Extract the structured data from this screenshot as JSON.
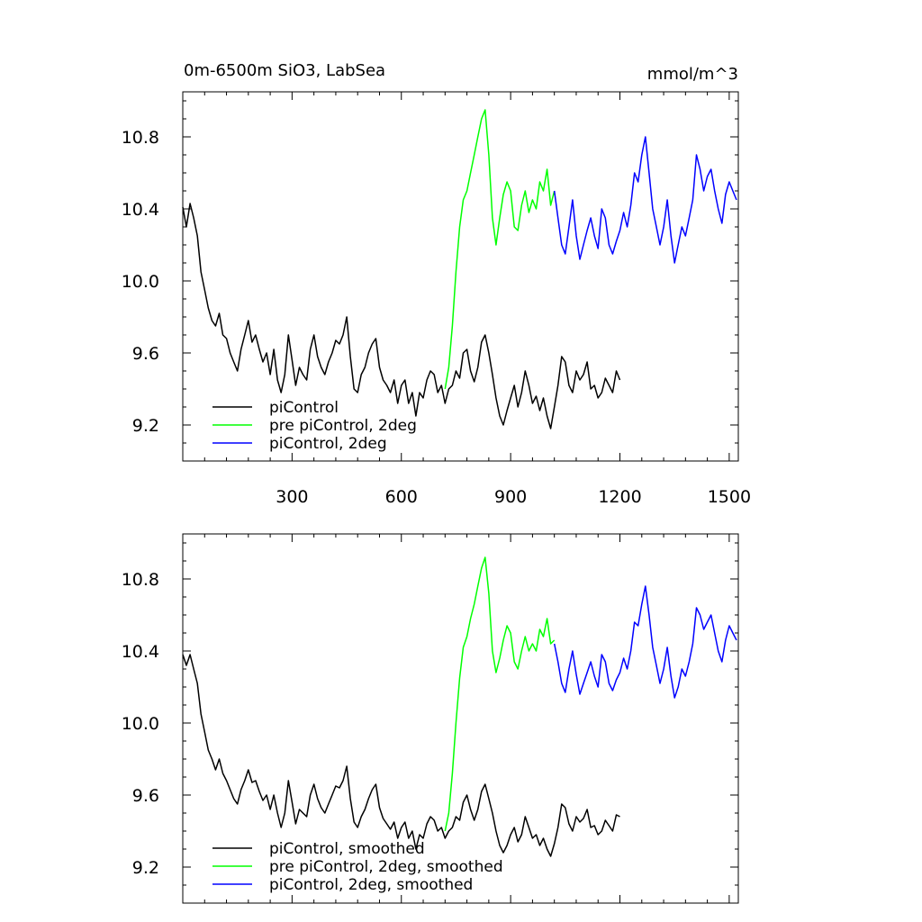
{
  "chart_data": [
    {
      "type": "line",
      "title": "0m-6500m SiO3, LabSea",
      "units": "mmol/m^3",
      "xlim": [
        0,
        1525
      ],
      "ylim": [
        9.0,
        11.05
      ],
      "x_ticks": [
        300,
        600,
        900,
        1200,
        1500
      ],
      "x_tick_labels": [
        "300",
        "600",
        "900",
        "1200",
        "1500"
      ],
      "y_ticks": [
        9.2,
        9.6,
        10.0,
        10.4,
        10.8
      ],
      "y_tick_labels": [
        "9.2",
        "9.6",
        "10.0",
        "10.4",
        "10.8"
      ],
      "legend_position": "bottom-left",
      "series": [
        {
          "name": "piControl",
          "color": "#000000",
          "x": [
            0,
            10,
            20,
            30,
            40,
            50,
            60,
            70,
            80,
            90,
            100,
            110,
            120,
            130,
            140,
            150,
            160,
            170,
            180,
            190,
            200,
            210,
            220,
            230,
            240,
            250,
            260,
            270,
            280,
            290,
            300,
            310,
            320,
            330,
            340,
            350,
            360,
            370,
            380,
            390,
            400,
            410,
            420,
            430,
            440,
            450,
            460,
            470,
            480,
            490,
            500,
            510,
            520,
            530,
            540,
            550,
            560,
            570,
            580,
            590,
            600,
            610,
            620,
            630,
            640,
            650,
            660,
            670,
            680,
            690,
            700,
            710,
            720,
            730,
            740,
            750,
            760,
            770,
            780,
            790,
            800,
            810,
            820,
            830,
            840,
            850,
            860,
            870,
            880,
            890,
            900,
            910,
            920,
            930,
            940,
            950,
            960,
            970,
            980,
            990,
            1000,
            1010,
            1020,
            1030,
            1040,
            1050,
            1060,
            1070,
            1080,
            1090,
            1100,
            1110,
            1120,
            1130,
            1140,
            1150,
            1160,
            1170,
            1180,
            1190,
            1200
          ],
          "y": [
            10.41,
            10.3,
            10.43,
            10.35,
            10.25,
            10.05,
            9.95,
            9.85,
            9.78,
            9.75,
            9.82,
            9.7,
            9.68,
            9.6,
            9.55,
            9.5,
            9.62,
            9.7,
            9.78,
            9.66,
            9.7,
            9.62,
            9.55,
            9.6,
            9.48,
            9.62,
            9.45,
            9.38,
            9.48,
            9.7,
            9.56,
            9.42,
            9.52,
            9.48,
            9.45,
            9.62,
            9.7,
            9.58,
            9.52,
            9.48,
            9.55,
            9.6,
            9.67,
            9.65,
            9.7,
            9.8,
            9.58,
            9.4,
            9.38,
            9.48,
            9.52,
            9.6,
            9.65,
            9.68,
            9.52,
            9.45,
            9.42,
            9.38,
            9.45,
            9.32,
            9.42,
            9.45,
            9.32,
            9.38,
            9.25,
            9.38,
            9.35,
            9.45,
            9.5,
            9.48,
            9.38,
            9.42,
            9.32,
            9.4,
            9.42,
            9.5,
            9.46,
            9.6,
            9.62,
            9.5,
            9.44,
            9.52,
            9.66,
            9.7,
            9.6,
            9.48,
            9.35,
            9.25,
            9.2,
            9.28,
            9.35,
            9.42,
            9.3,
            9.38,
            9.5,
            9.42,
            9.32,
            9.36,
            9.28,
            9.35,
            9.25,
            9.18,
            9.3,
            9.42,
            9.58,
            9.55,
            9.42,
            9.38,
            9.5,
            9.45,
            9.48,
            9.55,
            9.4,
            9.42,
            9.35,
            9.38,
            9.46,
            9.42,
            9.38,
            9.5,
            9.45
          ]
        },
        {
          "name": "pre piControl, 2deg",
          "color": "#00ff00",
          "x": [
            720,
            730,
            740,
            750,
            760,
            770,
            780,
            790,
            800,
            810,
            820,
            830,
            840,
            850,
            860,
            870,
            880,
            890,
            900,
            910,
            920,
            930,
            940,
            950,
            960,
            970,
            980,
            990,
            1000,
            1010,
            1020
          ],
          "y": [
            9.4,
            9.52,
            9.75,
            10.05,
            10.3,
            10.45,
            10.5,
            10.6,
            10.7,
            10.8,
            10.9,
            10.95,
            10.7,
            10.35,
            10.2,
            10.35,
            10.48,
            10.55,
            10.5,
            10.3,
            10.28,
            10.42,
            10.5,
            10.38,
            10.45,
            10.4,
            10.55,
            10.5,
            10.62,
            10.42,
            10.5
          ]
        },
        {
          "name": "piControl, 2deg",
          "color": "#0000ff",
          "x": [
            1020,
            1030,
            1040,
            1050,
            1060,
            1070,
            1080,
            1090,
            1100,
            1110,
            1120,
            1130,
            1140,
            1150,
            1160,
            1170,
            1180,
            1190,
            1200,
            1210,
            1220,
            1230,
            1240,
            1250,
            1260,
            1270,
            1280,
            1290,
            1300,
            1310,
            1320,
            1330,
            1340,
            1350,
            1360,
            1370,
            1380,
            1390,
            1400,
            1410,
            1420,
            1430,
            1440,
            1450,
            1460,
            1470,
            1480,
            1490,
            1500,
            1510,
            1520
          ],
          "y": [
            10.5,
            10.35,
            10.2,
            10.15,
            10.3,
            10.45,
            10.25,
            10.12,
            10.2,
            10.28,
            10.35,
            10.25,
            10.18,
            10.4,
            10.35,
            10.2,
            10.15,
            10.22,
            10.28,
            10.38,
            10.3,
            10.42,
            10.6,
            10.55,
            10.7,
            10.8,
            10.6,
            10.4,
            10.3,
            10.2,
            10.3,
            10.45,
            10.25,
            10.1,
            10.2,
            10.3,
            10.25,
            10.35,
            10.45,
            10.7,
            10.62,
            10.5,
            10.58,
            10.62,
            10.5,
            10.4,
            10.32,
            10.48,
            10.55,
            10.5,
            10.45
          ]
        }
      ]
    },
    {
      "type": "line",
      "title": "",
      "units": "",
      "xlim": [
        0,
        1525
      ],
      "ylim": [
        9.0,
        11.05
      ],
      "y_ticks": [
        9.2,
        9.6,
        10.0,
        10.4,
        10.8
      ],
      "y_tick_labels": [
        "9.2",
        "9.6",
        "10.0",
        "10.4",
        "10.8"
      ],
      "legend_position": "bottom-left",
      "series": [
        {
          "name": "piControl, smoothed",
          "color": "#000000",
          "x": [
            0,
            10,
            20,
            30,
            40,
            50,
            60,
            70,
            80,
            90,
            100,
            110,
            120,
            130,
            140,
            150,
            160,
            170,
            180,
            190,
            200,
            210,
            220,
            230,
            240,
            250,
            260,
            270,
            280,
            290,
            300,
            310,
            320,
            330,
            340,
            350,
            360,
            370,
            380,
            390,
            400,
            410,
            420,
            430,
            440,
            450,
            460,
            470,
            480,
            490,
            500,
            510,
            520,
            530,
            540,
            550,
            560,
            570,
            580,
            590,
            600,
            610,
            620,
            630,
            640,
            650,
            660,
            670,
            680,
            690,
            700,
            710,
            720,
            730,
            740,
            750,
            760,
            770,
            780,
            790,
            800,
            810,
            820,
            830,
            840,
            850,
            860,
            870,
            880,
            890,
            900,
            910,
            920,
            930,
            940,
            950,
            960,
            970,
            980,
            990,
            1000,
            1010,
            1020,
            1030,
            1040,
            1050,
            1060,
            1070,
            1080,
            1090,
            1100,
            1110,
            1120,
            1130,
            1140,
            1150,
            1160,
            1170,
            1180,
            1190,
            1200
          ],
          "y": [
            10.38,
            10.32,
            10.38,
            10.3,
            10.22,
            10.05,
            9.95,
            9.85,
            9.8,
            9.74,
            9.8,
            9.72,
            9.68,
            9.63,
            9.58,
            9.55,
            9.63,
            9.68,
            9.74,
            9.67,
            9.68,
            9.62,
            9.57,
            9.6,
            9.52,
            9.6,
            9.5,
            9.42,
            9.5,
            9.68,
            9.56,
            9.44,
            9.52,
            9.5,
            9.48,
            9.6,
            9.66,
            9.58,
            9.53,
            9.5,
            9.55,
            9.6,
            9.65,
            9.64,
            9.68,
            9.76,
            9.58,
            9.45,
            9.42,
            9.48,
            9.52,
            9.58,
            9.63,
            9.66,
            9.53,
            9.47,
            9.44,
            9.41,
            9.45,
            9.36,
            9.42,
            9.45,
            9.36,
            9.4,
            9.3,
            9.38,
            9.36,
            9.44,
            9.48,
            9.46,
            9.4,
            9.42,
            9.36,
            9.4,
            9.42,
            9.48,
            9.46,
            9.56,
            9.6,
            9.52,
            9.46,
            9.52,
            9.62,
            9.66,
            9.58,
            9.5,
            9.4,
            9.32,
            9.28,
            9.32,
            9.38,
            9.42,
            9.34,
            9.38,
            9.48,
            9.42,
            9.36,
            9.38,
            9.32,
            9.36,
            9.3,
            9.26,
            9.33,
            9.42,
            9.55,
            9.53,
            9.44,
            9.4,
            9.48,
            9.45,
            9.47,
            9.52,
            9.42,
            9.43,
            9.38,
            9.4,
            9.46,
            9.43,
            9.4,
            9.49,
            9.48
          ]
        },
        {
          "name": "pre piControl, 2deg, smoothed",
          "color": "#00ff00",
          "x": [
            720,
            730,
            740,
            750,
            760,
            770,
            780,
            790,
            800,
            810,
            820,
            830,
            840,
            850,
            860,
            870,
            880,
            890,
            900,
            910,
            920,
            930,
            940,
            950,
            960,
            970,
            980,
            990,
            1000,
            1010,
            1020
          ],
          "y": [
            9.4,
            9.5,
            9.72,
            10.0,
            10.25,
            10.42,
            10.48,
            10.58,
            10.66,
            10.76,
            10.86,
            10.92,
            10.72,
            10.4,
            10.28,
            10.36,
            10.46,
            10.54,
            10.5,
            10.34,
            10.3,
            10.4,
            10.48,
            10.4,
            10.44,
            10.4,
            10.52,
            10.48,
            10.58,
            10.44,
            10.46
          ]
        },
        {
          "name": "piControl, 2deg, smoothed",
          "color": "#0000ff",
          "x": [
            1020,
            1030,
            1040,
            1050,
            1060,
            1070,
            1080,
            1090,
            1100,
            1110,
            1120,
            1130,
            1140,
            1150,
            1160,
            1170,
            1180,
            1190,
            1200,
            1210,
            1220,
            1230,
            1240,
            1250,
            1260,
            1270,
            1280,
            1290,
            1300,
            1310,
            1320,
            1330,
            1340,
            1350,
            1360,
            1370,
            1380,
            1390,
            1400,
            1410,
            1420,
            1430,
            1440,
            1450,
            1460,
            1470,
            1480,
            1490,
            1500,
            1510,
            1520
          ],
          "y": [
            10.44,
            10.34,
            10.22,
            10.17,
            10.3,
            10.4,
            10.27,
            10.16,
            10.22,
            10.28,
            10.34,
            10.26,
            10.2,
            10.38,
            10.34,
            10.22,
            10.18,
            10.24,
            10.28,
            10.36,
            10.3,
            10.4,
            10.56,
            10.54,
            10.66,
            10.76,
            10.6,
            10.42,
            10.32,
            10.22,
            10.3,
            10.42,
            10.26,
            10.14,
            10.2,
            10.3,
            10.26,
            10.34,
            10.44,
            10.64,
            10.6,
            10.52,
            10.56,
            10.6,
            10.5,
            10.4,
            10.34,
            10.46,
            10.54,
            10.5,
            10.46
          ]
        }
      ]
    }
  ]
}
